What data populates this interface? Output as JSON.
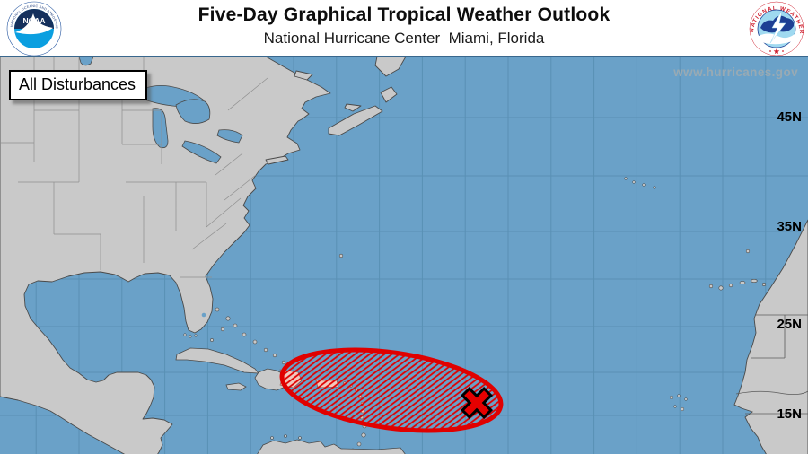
{
  "header": {
    "title": "Five-Day Graphical Tropical Weather Outlook",
    "subtitle": "National Hurricane Center  Miami, Florida"
  },
  "logos": {
    "noaa": {
      "acronym": "NOAA",
      "ring_top": "NATIONAL OCEANIC AND ATMOSPHERIC ADMINISTRATION",
      "ring_bottom": "U.S. DEPARTMENT OF COMMERCE"
    },
    "nws": {
      "ring_text": "NATIONAL WEATHER SERVICE"
    }
  },
  "map": {
    "legend_label": "All Disturbances",
    "watermark": "www.hurricanes.gov",
    "latitude_labels": [
      "45N",
      "35N",
      "25N",
      "15N"
    ],
    "disturbance": {
      "marker": "x-marker",
      "area_outline_color": "#e00000",
      "area_style": "red-diagonal-hatch"
    }
  },
  "colors": {
    "ocean": "#6aa1c8",
    "land": "#c9c9c9",
    "grid_line": "#5990b4",
    "alert_red": "#e00000"
  }
}
